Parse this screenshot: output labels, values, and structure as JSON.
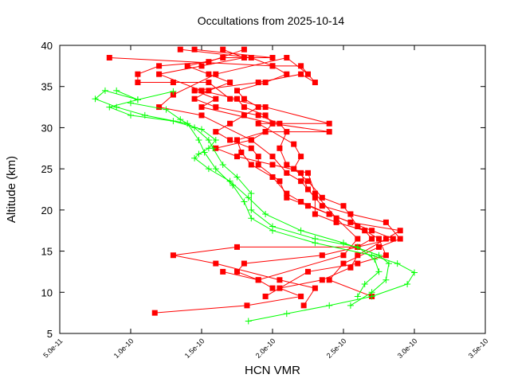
{
  "chart_data": {
    "type": "line",
    "title": "Occultations from 2025-10-14",
    "xlabel": "HCN VMR",
    "ylabel": "Altitude (km)",
    "xlim": [
      5e-11,
      3.5e-10
    ],
    "ylim": [
      5,
      40
    ],
    "xticks": [
      5e-11,
      1e-10,
      1.5e-10,
      2e-10,
      2.5e-10,
      3e-10,
      3.5e-10
    ],
    "xtick_labels": [
      "5.0e-11",
      "1.0e-10",
      "1.5e-10",
      "2.0e-10",
      "2.5e-10",
      "3.0e-10",
      "3.5e-10"
    ],
    "yticks": [
      5,
      10,
      15,
      20,
      25,
      30,
      35,
      40
    ],
    "ytick_labels": [
      "5",
      "10",
      "15",
      "20",
      "25",
      "30",
      "35",
      "40"
    ],
    "grid": false,
    "legend": "none",
    "colors": {
      "red_series": "#ff0000",
      "green_series": "#00ff00"
    },
    "series": [
      {
        "color": "#ff0000",
        "marker": "square",
        "points": [
          [
            1.17e-10,
            7.5
          ],
          [
            1.82e-10,
            8.4
          ],
          [
            2.2e-10,
            9.5
          ],
          [
            2.05e-10,
            10.5
          ],
          [
            2.35e-10,
            11.5
          ],
          [
            2.55e-10,
            13
          ],
          [
            2.6e-10,
            14.5
          ],
          [
            2.8e-10,
            16.5
          ],
          [
            2.9e-10,
            17.5
          ],
          [
            2.55e-10,
            18.5
          ],
          [
            2.4e-10,
            19.5
          ],
          [
            2.2e-10,
            21
          ],
          [
            2.1e-10,
            22
          ],
          [
            2e-10,
            24
          ],
          [
            1.85e-10,
            25.5
          ],
          [
            1.78e-10,
            27
          ],
          [
            1.75e-10,
            28.5
          ],
          [
            1.95e-10,
            29.5
          ],
          [
            2e-10,
            30.5
          ],
          [
            1.95e-10,
            31.5
          ],
          [
            1.8e-10,
            32.5
          ],
          [
            1.75e-10,
            33.5
          ],
          [
            1.5e-10,
            34.5
          ],
          [
            1.2e-10,
            36.5
          ],
          [
            1.5e-10,
            37.5
          ],
          [
            1.8e-10,
            38.5
          ],
          [
            1.65e-10,
            39.5
          ]
        ]
      },
      {
        "color": "#ff0000",
        "marker": "square",
        "points": [
          [
            2.22e-10,
            8.4
          ],
          [
            2.3e-10,
            10.5
          ],
          [
            2.05e-10,
            11.5
          ],
          [
            1.6e-10,
            13.5
          ],
          [
            1.3e-10,
            14.5
          ],
          [
            1.75e-10,
            15.5
          ],
          [
            2.6e-10,
            15.5
          ],
          [
            2.85e-10,
            16.5
          ],
          [
            2.7e-10,
            17.5
          ],
          [
            2.4e-10,
            19.5
          ],
          [
            2.25e-10,
            20.5
          ],
          [
            2.1e-10,
            21.5
          ],
          [
            2.05e-10,
            23.5
          ],
          [
            1.9e-10,
            25.5
          ],
          [
            1.9e-10,
            26.5
          ],
          [
            1.85e-10,
            27.5
          ],
          [
            1.7e-10,
            28.5
          ],
          [
            1.6e-10,
            29.5
          ],
          [
            1.7e-10,
            30.5
          ],
          [
            1.8e-10,
            31.5
          ],
          [
            1.9e-10,
            32.5
          ],
          [
            1.8e-10,
            33.5
          ],
          [
            1.75e-10,
            34.5
          ],
          [
            1.95e-10,
            35.5
          ],
          [
            2.1e-10,
            36.5
          ],
          [
            2e-10,
            37.5
          ],
          [
            1.85e-10,
            38.5
          ],
          [
            1.35e-10,
            39.5
          ]
        ]
      },
      {
        "color": "#ff0000",
        "marker": "square",
        "points": [
          [
            2.7e-10,
            9.5
          ],
          [
            2.4e-10,
            11.5
          ],
          [
            2.5e-10,
            13.5
          ],
          [
            2.75e-10,
            15.5
          ],
          [
            2.9e-10,
            16.5
          ],
          [
            2.8e-10,
            18.5
          ],
          [
            2.55e-10,
            19.5
          ],
          [
            2.35e-10,
            20.5
          ],
          [
            2.25e-10,
            22.5
          ],
          [
            2.2e-10,
            24.5
          ],
          [
            2.1e-10,
            25.5
          ],
          [
            2.05e-10,
            27.5
          ],
          [
            2.1e-10,
            29.5
          ],
          [
            2.05e-10,
            30.5
          ],
          [
            1.9e-10,
            31.5
          ],
          [
            1.6e-10,
            32.5
          ],
          [
            1.45e-10,
            33.5
          ],
          [
            1.55e-10,
            34.5
          ],
          [
            1.7e-10,
            35.5
          ],
          [
            1.55e-10,
            36.5
          ],
          [
            1.4e-10,
            37.5
          ],
          [
            1.65e-10,
            38.5
          ],
          [
            2e-10,
            38.5
          ],
          [
            1.45e-10,
            39.5
          ]
        ]
      },
      {
        "color": "#ff0000",
        "marker": "square",
        "points": [
          [
            2e-10,
            10.5
          ],
          [
            1.9e-10,
            11.5
          ],
          [
            1.75e-10,
            12.5
          ],
          [
            1.8e-10,
            13.5
          ],
          [
            2.35e-10,
            14.5
          ],
          [
            2.6e-10,
            15.5
          ],
          [
            2.7e-10,
            16.5
          ],
          [
            2.65e-10,
            17.5
          ],
          [
            2.45e-10,
            18.5
          ],
          [
            2.3e-10,
            19.5
          ],
          [
            2.3e-10,
            21.5
          ],
          [
            2.2e-10,
            23.5
          ],
          [
            2.1e-10,
            24.5
          ],
          [
            2e-10,
            26.5
          ],
          [
            1.85e-10,
            28.5
          ],
          [
            1.95e-10,
            29.5
          ],
          [
            2.4e-10,
            29.5
          ],
          [
            2e-10,
            30.5
          ],
          [
            1.5e-10,
            32.5
          ],
          [
            1.6e-10,
            33.5
          ],
          [
            1.45e-10,
            34.5
          ],
          [
            1.9e-10,
            35.5
          ],
          [
            2.2e-10,
            36.5
          ],
          [
            2.3e-10,
            35.5
          ],
          [
            2.2e-10,
            37.5
          ],
          [
            2e-10,
            37.5
          ],
          [
            8.5e-11,
            38.5
          ]
        ]
      },
      {
        "color": "#ff0000",
        "marker": "square",
        "points": [
          [
            1.95e-10,
            9.5
          ],
          [
            2.25e-10,
            12.5
          ],
          [
            2.6e-10,
            13.5
          ],
          [
            2.8e-10,
            14.5
          ],
          [
            2.75e-10,
            16.5
          ],
          [
            2.6e-10,
            18
          ],
          [
            2.5e-10,
            20.5
          ],
          [
            2.35e-10,
            21.5
          ],
          [
            2.25e-10,
            23.5
          ],
          [
            2.15e-10,
            25
          ],
          [
            2.2e-10,
            26.5
          ],
          [
            2.15e-10,
            28
          ],
          [
            1.9e-10,
            30.5
          ],
          [
            2.4e-10,
            30.5
          ],
          [
            1.95e-10,
            32.5
          ],
          [
            1.7e-10,
            33.5
          ],
          [
            1.55e-10,
            35.5
          ],
          [
            1.3e-10,
            35.5
          ],
          [
            1.05e-10,
            35.5
          ],
          [
            1.05e-10,
            36.5
          ],
          [
            1.2e-10,
            37.5
          ],
          [
            1.55e-10,
            38
          ],
          [
            1.8e-10,
            39.5
          ]
        ]
      },
      {
        "color": "#ff0000",
        "marker": "square",
        "points": [
          [
            1.65e-10,
            12.5
          ],
          [
            1.9e-10,
            11.5
          ],
          [
            2.5e-10,
            14.5
          ],
          [
            2.6e-10,
            16.5
          ],
          [
            2.45e-10,
            19
          ],
          [
            2.3e-10,
            22
          ],
          [
            2.25e-10,
            24.5
          ],
          [
            2e-10,
            25.5
          ],
          [
            1.75e-10,
            26.5
          ],
          [
            1.6e-10,
            27.5
          ],
          [
            1.85e-10,
            28.5
          ],
          [
            1.5e-10,
            31.5
          ],
          [
            1.2e-10,
            32.5
          ],
          [
            1.3e-10,
            34
          ],
          [
            1.6e-10,
            36.5
          ],
          [
            2.1e-10,
            38.5
          ],
          [
            2.25e-10,
            36.5
          ]
        ]
      },
      {
        "color": "#00ff00",
        "marker": "plus",
        "points": [
          [
            1.83e-10,
            6.5
          ],
          [
            2.1e-10,
            7.4
          ],
          [
            2.4e-10,
            8.4
          ],
          [
            2.7e-10,
            9.5
          ],
          [
            2.95e-10,
            11
          ],
          [
            3e-10,
            12.4
          ],
          [
            2.88e-10,
            13.5
          ],
          [
            2.7e-10,
            14.5
          ],
          [
            2.3e-10,
            16
          ],
          [
            2e-10,
            17.5
          ],
          [
            1.85e-10,
            19
          ],
          [
            1.8e-10,
            21
          ],
          [
            1.72e-10,
            23
          ],
          [
            1.6e-10,
            25
          ],
          [
            1.52e-10,
            27
          ],
          [
            1.48e-10,
            28.5
          ],
          [
            1.4e-10,
            30.5
          ],
          [
            1.1e-10,
            31.5
          ],
          [
            9e-11,
            32.5
          ],
          [
            7.5e-11,
            33.5
          ],
          [
            8.2e-11,
            34.5
          ],
          [
            1.05e-10,
            33.4
          ],
          [
            1.3e-10,
            34.4
          ]
        ]
      },
      {
        "color": "#00ff00",
        "marker": "plus",
        "points": [
          [
            2.55e-10,
            8.4
          ],
          [
            2.7e-10,
            10
          ],
          [
            2.8e-10,
            11.5
          ],
          [
            2.82e-10,
            13.5
          ],
          [
            2.75e-10,
            14.5
          ],
          [
            2.5e-10,
            16
          ],
          [
            2.2e-10,
            17.5
          ],
          [
            1.95e-10,
            19.5
          ],
          [
            1.83e-10,
            21.5
          ],
          [
            1.7e-10,
            23.5
          ],
          [
            1.55e-10,
            25
          ],
          [
            1.45e-10,
            26.3
          ],
          [
            1.48e-10,
            26.8
          ],
          [
            1.55e-10,
            27.5
          ],
          [
            1.6e-10,
            28.5
          ],
          [
            1.5e-10,
            29.8
          ],
          [
            1.3e-10,
            30.8
          ],
          [
            1e-10,
            31.5
          ],
          [
            8.5e-11,
            32.5
          ],
          [
            1.05e-10,
            33.4
          ],
          [
            9e-11,
            34.5
          ]
        ]
      },
      {
        "color": "#00ff00",
        "marker": "plus",
        "points": [
          [
            2.6e-10,
            9.5
          ],
          [
            2.65e-10,
            11
          ],
          [
            2.75e-10,
            12.5
          ],
          [
            2.72e-10,
            14
          ],
          [
            2.6e-10,
            15.5
          ],
          [
            2.3e-10,
            16.5
          ],
          [
            2e-10,
            18
          ],
          [
            1.85e-10,
            20
          ],
          [
            1.85e-10,
            22
          ],
          [
            1.75e-10,
            24
          ],
          [
            1.65e-10,
            25.5
          ],
          [
            1.58e-10,
            27.5
          ],
          [
            1.55e-10,
            28.5
          ],
          [
            1.45e-10,
            30
          ],
          [
            1.35e-10,
            31
          ],
          [
            1.25e-10,
            32.2
          ],
          [
            1e-10,
            33
          ]
        ]
      }
    ]
  }
}
